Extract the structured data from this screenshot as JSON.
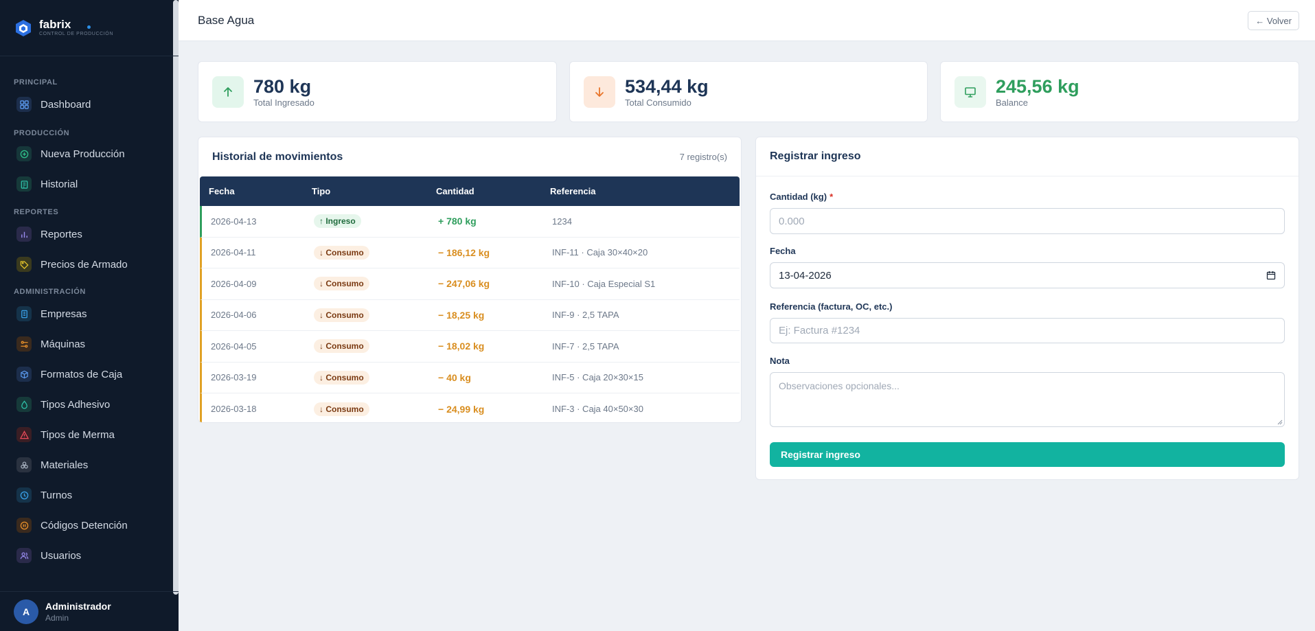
{
  "brand": {
    "name": "fabrix",
    "subtitle": "CONTROL DE PRODUCCIÓN"
  },
  "sidebar": {
    "sections": [
      {
        "title": "PRINCIPAL",
        "items": [
          {
            "label": "Dashboard",
            "icon": "dashboard-icon"
          }
        ]
      },
      {
        "title": "PRODUCCIÓN",
        "items": [
          {
            "label": "Nueva Producción",
            "icon": "plus-circle-icon"
          },
          {
            "label": "Historial",
            "icon": "clipboard-icon"
          }
        ]
      },
      {
        "title": "REPORTES",
        "items": [
          {
            "label": "Reportes",
            "icon": "bar-chart-icon"
          },
          {
            "label": "Precios de Armado",
            "icon": "tag-icon"
          }
        ]
      },
      {
        "title": "ADMINISTRACIÓN",
        "items": [
          {
            "label": "Empresas",
            "icon": "building-icon"
          },
          {
            "label": "Máquinas",
            "icon": "machine-icon"
          },
          {
            "label": "Formatos de Caja",
            "icon": "box-icon"
          },
          {
            "label": "Tipos Adhesivo",
            "icon": "drop-icon"
          },
          {
            "label": "Tipos de Merma",
            "icon": "warning-icon"
          },
          {
            "label": "Materiales",
            "icon": "layers-icon"
          },
          {
            "label": "Turnos",
            "icon": "clock-icon"
          },
          {
            "label": "Códigos Detención",
            "icon": "pause-icon"
          },
          {
            "label": "Usuarios",
            "icon": "users-icon"
          }
        ]
      }
    ]
  },
  "user": {
    "initial": "A",
    "name": "Administrador",
    "role": "Admin"
  },
  "header": {
    "title": "Base Agua",
    "back_label": "← Volver"
  },
  "stats": [
    {
      "value": "780 kg",
      "label": "Total Ingresado",
      "icon": "arrow-up-icon",
      "color": "#2f9e5d",
      "bg": "#e3f6ec"
    },
    {
      "value": "534,44 kg",
      "label": "Total Consumido",
      "icon": "arrow-down-icon",
      "color": "#e8742a",
      "bg": "#fde9dc"
    },
    {
      "value": "245,56 kg",
      "label": "Balance",
      "icon": "monitor-icon",
      "color": "#2f9e5d",
      "bg": "#e9f7ef"
    }
  ],
  "history": {
    "title": "Historial de movimientos",
    "count": "7 registro(s)",
    "columns": [
      "Fecha",
      "Tipo",
      "Cantidad",
      "Referencia"
    ],
    "rows": [
      {
        "fecha": "2026-04-13",
        "tipo": "↑ Ingreso",
        "cantidad": "+ 780 kg",
        "referencia": "1234"
      },
      {
        "fecha": "2026-04-11",
        "tipo": "↓ Consumo",
        "cantidad": "− 186,12 kg",
        "referencia": "INF-11 · Caja 30×40×20"
      },
      {
        "fecha": "2026-04-09",
        "tipo": "↓ Consumo",
        "cantidad": "− 247,06 kg",
        "referencia": "INF-10 · Caja Especial S1"
      },
      {
        "fecha": "2026-04-06",
        "tipo": "↓ Consumo",
        "cantidad": "− 18,25 kg",
        "referencia": "INF-9 · 2,5 TAPA"
      },
      {
        "fecha": "2026-04-05",
        "tipo": "↓ Consumo",
        "cantidad": "− 18,02 kg",
        "referencia": "INF-7 · 2,5 TAPA"
      },
      {
        "fecha": "2026-03-19",
        "tipo": "↓ Consumo",
        "cantidad": "− 40 kg",
        "referencia": "INF-5 · Caja 20×30×15"
      },
      {
        "fecha": "2026-03-18",
        "tipo": "↓ Consumo",
        "cantidad": "− 24,99 kg",
        "referencia": "INF-3 · Caja 40×50×30"
      }
    ]
  },
  "form": {
    "title": "Registrar ingreso",
    "cantidad_label": "Cantidad (kg)",
    "required_mark": "*",
    "cantidad_placeholder": "0.000",
    "fecha_label": "Fecha",
    "fecha_value": "13-04-2026",
    "referencia_label": "Referencia (factura, OC, etc.)",
    "referencia_placeholder": "Ej: Factura #1234",
    "nota_label": "Nota",
    "nota_placeholder": "Observaciones opcionales...",
    "submit_label": "Registrar ingreso"
  }
}
